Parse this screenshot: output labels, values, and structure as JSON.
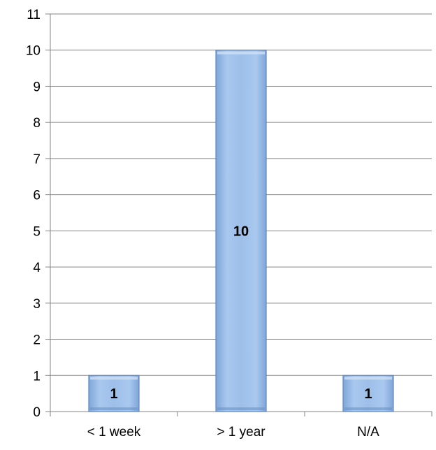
{
  "chart_data": {
    "type": "bar",
    "title": "",
    "xlabel": "",
    "ylabel": "",
    "categories": [
      "< 1 week",
      "> 1 year",
      "N/A"
    ],
    "values": [
      1,
      10,
      1
    ],
    "data_labels": [
      "1",
      "10",
      "1"
    ],
    "ylim": [
      0,
      11
    ],
    "yticks": [
      "0",
      "1",
      "2",
      "3",
      "4",
      "5",
      "6",
      "7",
      "8",
      "9",
      "10",
      "11"
    ],
    "grid": true,
    "legend": "none",
    "colors": {
      "bar_fill": "#95b9e6",
      "bar_edge": "#5f86bd",
      "gridline": "#868686",
      "axis": "#868686"
    }
  }
}
